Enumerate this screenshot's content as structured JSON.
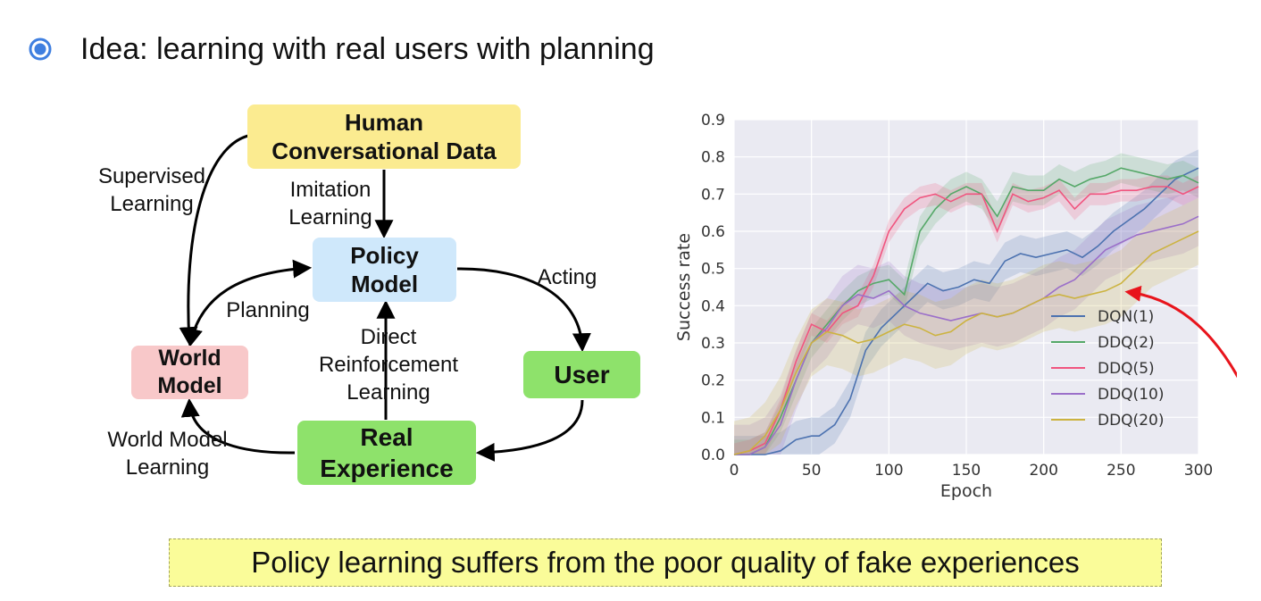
{
  "header": {
    "text": "Idea: learning with real users with planning",
    "bullet_icon": "radio-bullet-icon"
  },
  "diagram": {
    "human_data": "Human\nConversational Data",
    "policy_model": "Policy\nModel",
    "world_model": "World\nModel",
    "user": "User",
    "real_experience": "Real\nExperience",
    "supervised_learning": "Supervised\nLearning",
    "imitation_learning": "Imitation\nLearning",
    "planning": "Planning",
    "acting": "Acting",
    "direct_rl": "Direct\nReinforcement\nLearning",
    "world_model_learning": "World Model\nLearning",
    "colors": {
      "human_data": "#fbeb90",
      "policy_model": "#cfe8fb",
      "world_model": "#f8c8c9",
      "user": "#8ee26b",
      "real_experience": "#8ee26b"
    }
  },
  "chart_data": {
    "type": "line",
    "xlabel": "Epoch",
    "ylabel": "Success rate",
    "xlim": [
      0,
      300
    ],
    "ylim": [
      0,
      0.9
    ],
    "xticks": [
      "0",
      "50",
      "100",
      "150",
      "200",
      "250",
      "300"
    ],
    "yticks": [
      "0.0",
      "0.1",
      "0.2",
      "0.3",
      "0.4",
      "0.5",
      "0.6",
      "0.7",
      "0.8",
      "0.9"
    ],
    "grid": true,
    "background": "#eaeaf2",
    "legend_position": "bottom-right",
    "series": [
      {
        "name": "DQN(1)",
        "color": "#4c72b0",
        "x": [
          0,
          20,
          30,
          40,
          50,
          55,
          65,
          75,
          85,
          95,
          105,
          115,
          125,
          135,
          145,
          155,
          165,
          175,
          185,
          195,
          205,
          215,
          225,
          235,
          245,
          255,
          265,
          275,
          285,
          295,
          300
        ],
        "values": [
          0.0,
          0.0,
          0.01,
          0.04,
          0.05,
          0.05,
          0.08,
          0.15,
          0.28,
          0.34,
          0.38,
          0.42,
          0.46,
          0.44,
          0.45,
          0.47,
          0.46,
          0.52,
          0.54,
          0.53,
          0.54,
          0.55,
          0.53,
          0.56,
          0.6,
          0.63,
          0.66,
          0.7,
          0.74,
          0.76,
          0.77
        ],
        "band": 0.05
      },
      {
        "name": "DDQ(2)",
        "color": "#55a868",
        "x": [
          0,
          10,
          20,
          30,
          40,
          50,
          60,
          70,
          80,
          90,
          100,
          110,
          120,
          130,
          140,
          150,
          160,
          170,
          180,
          190,
          200,
          210,
          220,
          230,
          240,
          250,
          260,
          270,
          280,
          290,
          300
        ],
        "values": [
          0.0,
          0.0,
          0.02,
          0.1,
          0.2,
          0.3,
          0.35,
          0.4,
          0.44,
          0.46,
          0.47,
          0.43,
          0.6,
          0.66,
          0.7,
          0.72,
          0.7,
          0.64,
          0.72,
          0.71,
          0.71,
          0.74,
          0.72,
          0.74,
          0.75,
          0.77,
          0.76,
          0.75,
          0.74,
          0.75,
          0.73
        ],
        "band": 0.04
      },
      {
        "name": "DDQ(5)",
        "color": "#f0557f",
        "x": [
          0,
          10,
          20,
          30,
          40,
          50,
          60,
          70,
          80,
          90,
          100,
          110,
          120,
          130,
          140,
          150,
          160,
          170,
          180,
          190,
          200,
          210,
          220,
          230,
          240,
          250,
          260,
          270,
          280,
          290,
          300
        ],
        "values": [
          0.0,
          0.01,
          0.03,
          0.12,
          0.25,
          0.35,
          0.33,
          0.38,
          0.4,
          0.48,
          0.6,
          0.66,
          0.69,
          0.7,
          0.68,
          0.7,
          0.7,
          0.6,
          0.7,
          0.68,
          0.69,
          0.71,
          0.66,
          0.7,
          0.7,
          0.71,
          0.71,
          0.72,
          0.72,
          0.7,
          0.72
        ],
        "band": 0.03
      },
      {
        "name": "DDQ(10)",
        "color": "#9b6fc9",
        "x": [
          0,
          10,
          20,
          30,
          40,
          50,
          60,
          70,
          80,
          90,
          100,
          110,
          120,
          130,
          140,
          150,
          160,
          170,
          180,
          190,
          200,
          210,
          220,
          230,
          240,
          250,
          260,
          270,
          280,
          290,
          300
        ],
        "values": [
          0.0,
          0.0,
          0.02,
          0.08,
          0.2,
          0.3,
          0.34,
          0.4,
          0.43,
          0.42,
          0.44,
          0.4,
          0.38,
          0.37,
          0.36,
          0.37,
          0.38,
          0.37,
          0.38,
          0.4,
          0.42,
          0.45,
          0.47,
          0.51,
          0.55,
          0.57,
          0.59,
          0.6,
          0.61,
          0.62,
          0.64
        ],
        "band": 0.08
      },
      {
        "name": "DDQ(20)",
        "color": "#ccb340",
        "x": [
          0,
          10,
          20,
          30,
          40,
          50,
          60,
          70,
          80,
          90,
          100,
          110,
          120,
          130,
          140,
          150,
          160,
          170,
          180,
          190,
          200,
          210,
          220,
          230,
          240,
          250,
          260,
          270,
          280,
          290,
          300
        ],
        "values": [
          0.0,
          0.01,
          0.05,
          0.12,
          0.22,
          0.3,
          0.33,
          0.32,
          0.3,
          0.31,
          0.33,
          0.35,
          0.34,
          0.32,
          0.33,
          0.36,
          0.38,
          0.37,
          0.38,
          0.4,
          0.42,
          0.43,
          0.42,
          0.43,
          0.44,
          0.46,
          0.5,
          0.54,
          0.56,
          0.58,
          0.6
        ],
        "band": 0.09
      }
    ],
    "annotation_arrow_color": "#e8141c"
  },
  "banner": {
    "text": "Policy learning suffers from the poor quality of fake experiences",
    "color": "#fafc99"
  }
}
